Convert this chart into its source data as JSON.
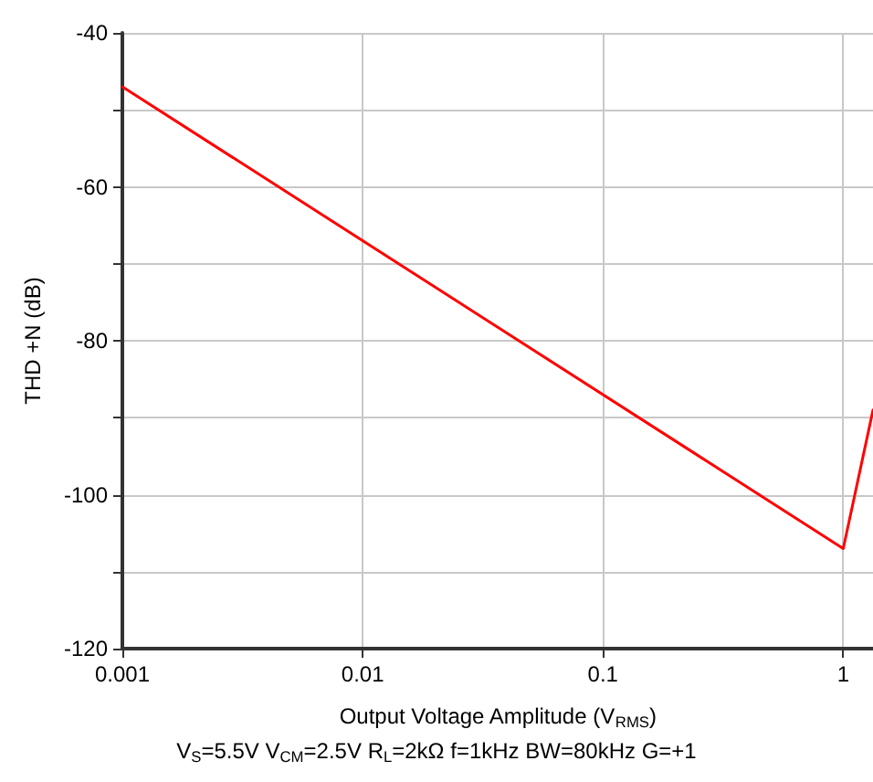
{
  "chart_data": {
    "type": "line",
    "xlabel": "Output Voltage Amplitude (V$_{RMS}$)",
    "ylabel": "THD +N (dB)",
    "annotations": [
      "V$_{S}$=5.5V V$_{CM}$=2.5V R$_{L}$=2kΩ f=1kHz BW=80kHz G=+1"
    ],
    "log": "x",
    "xlim": [
      0.001,
      1.33
    ],
    "xticks": [
      0.001,
      0.01,
      0.1,
      1
    ],
    "ylim": [
      -120,
      -40
    ],
    "yticks": [
      -120,
      {
        "value": -110,
        "label": null
      },
      -100,
      {
        "value": -90,
        "label": null
      },
      -80,
      {
        "value": -70,
        "label": null
      },
      -60,
      {
        "value": -50,
        "label": null
      },
      -40
    ],
    "grid": true,
    "marker": "none",
    "line_style": "solid",
    "series": [
      {
        "color": "#ff0000",
        "x": [
          0.001,
          1,
          1.33
        ],
        "values": [
          -47,
          -107,
          -89
        ]
      }
    ]
  }
}
